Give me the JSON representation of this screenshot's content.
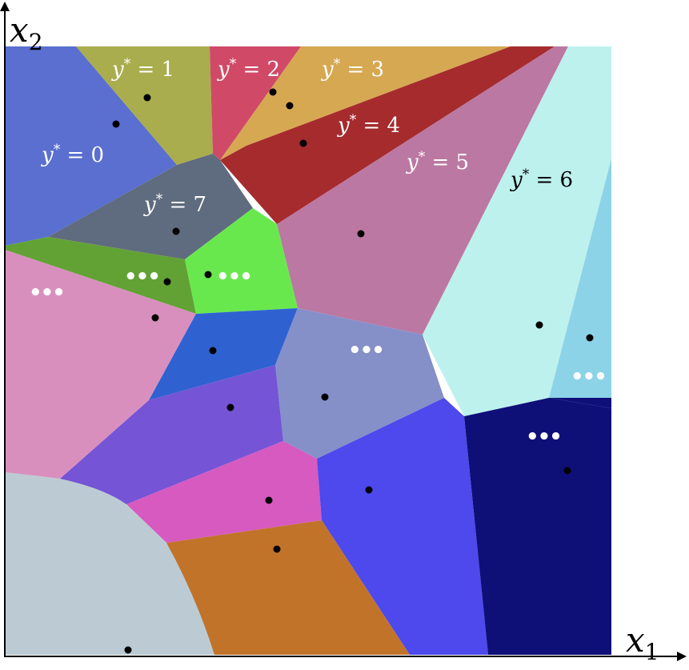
{
  "axes": {
    "x_label": "x",
    "x_subscript": "1",
    "y_label": "x",
    "y_subscript": "2"
  },
  "cells": [
    {
      "id": "c0",
      "label_var": "y",
      "label_sup": "*",
      "label_rest": " = 0",
      "label_color": "#ffffff",
      "fill": "#5a6fcf"
    },
    {
      "id": "c1",
      "label_var": "y",
      "label_sup": "*",
      "label_rest": " = 1",
      "label_color": "#ffffff",
      "fill": "#a9ad4d"
    },
    {
      "id": "c2",
      "label_var": "y",
      "label_sup": "*",
      "label_rest": " = 2",
      "label_color": "#ffffff",
      "fill": "#d04a68"
    },
    {
      "id": "c3",
      "label_var": "y",
      "label_sup": "*",
      "label_rest": " = 3",
      "label_color": "#ffffff",
      "fill": "#d6a852"
    },
    {
      "id": "c4",
      "label_var": "y",
      "label_sup": "*",
      "label_rest": " = 4",
      "label_color": "#ffffff",
      "fill": "#a52b2d"
    },
    {
      "id": "c5",
      "label_var": "y",
      "label_sup": "*",
      "label_rest": " = 5",
      "label_color": "#ffffff",
      "fill": "#bb78a2"
    },
    {
      "id": "c6",
      "label_var": "y",
      "label_sup": "*",
      "label_rest": " = 6",
      "label_color": "#000000",
      "fill": "#bdf1ee"
    },
    {
      "id": "c7",
      "label_var": "y",
      "label_sup": "*",
      "label_rest": " = 7",
      "label_color": "#ffffff",
      "fill": "#5f6b7e"
    }
  ],
  "other_cells": [
    {
      "id": "green",
      "fill": "#62a235",
      "marker": "•••"
    },
    {
      "id": "lime",
      "fill": "#69e84e",
      "marker": "•••"
    },
    {
      "id": "pink",
      "fill": "#d98fbe",
      "marker": "•••"
    },
    {
      "id": "blue",
      "fill": "#2f62d0",
      "marker": ""
    },
    {
      "id": "slate",
      "fill": "#8590c9",
      "marker": "•••"
    },
    {
      "id": "skyblue",
      "fill": "#8dd3e8",
      "marker": "•••"
    },
    {
      "id": "purple",
      "fill": "#7554d5",
      "marker": ""
    },
    {
      "id": "magenta",
      "fill": "#d65ac0",
      "marker": ""
    },
    {
      "id": "violet",
      "fill": "#4d49ec",
      "marker": ""
    },
    {
      "id": "navy",
      "fill": "#0f0f78",
      "marker": "•••"
    },
    {
      "id": "grey",
      "fill": "#bccbd3",
      "marker": ""
    },
    {
      "id": "orange",
      "fill": "#c1732a",
      "marker": ""
    }
  ],
  "colors": {
    "axis": "#000000",
    "point": "#000000",
    "background": "#ffffff"
  }
}
